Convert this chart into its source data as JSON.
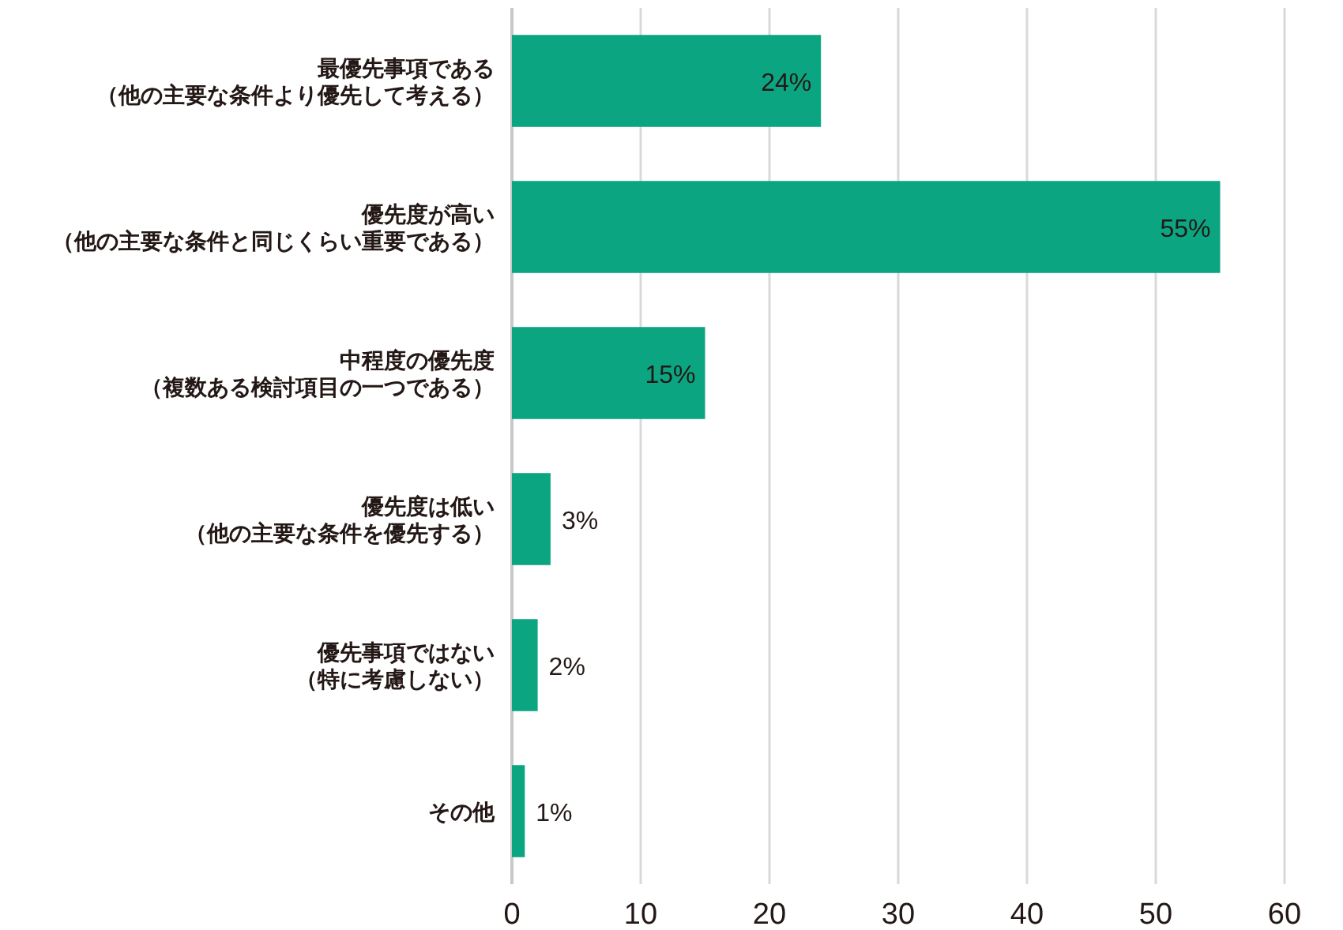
{
  "chart_data": {
    "type": "bar",
    "orientation": "horizontal",
    "categories": [
      "最優先事項である（他の主要な条件より優先して考える）",
      "優先度が高い（他の主要な条件と同じくらい重要である）",
      "中程度の優先度（複数ある検討項目の一つである）",
      "優先度は低い（他の主要な条件を優先する）",
      "優先事項ではない（特に考慮しない）",
      "その他"
    ],
    "values": [
      24,
      55,
      15,
      3,
      2,
      1
    ],
    "color": "#0ca582",
    "value_labels": [
      "24%",
      "55%",
      "15%",
      "3%",
      "2%",
      "1%"
    ],
    "xlim": [
      0,
      60
    ],
    "xticks": [
      0,
      10,
      20,
      30,
      40,
      50,
      60
    ],
    "grid": "x"
  }
}
